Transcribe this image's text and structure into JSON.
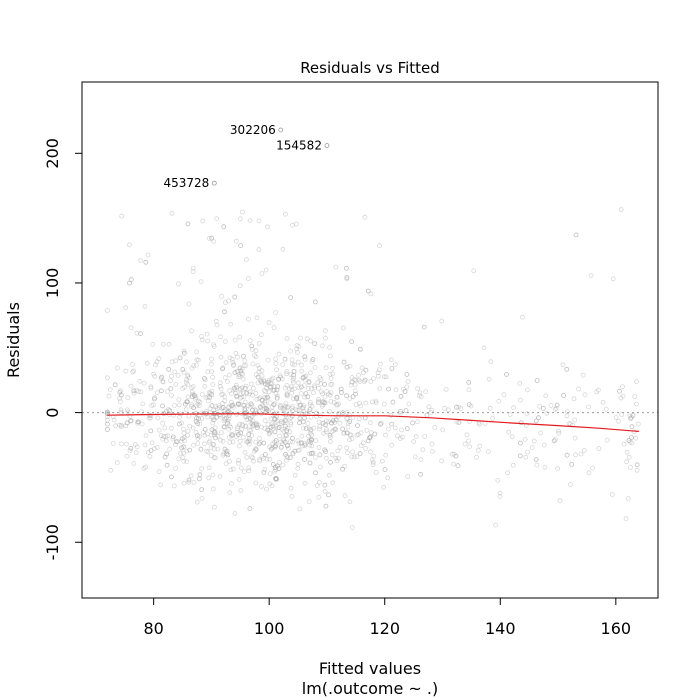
{
  "chart_data": {
    "type": "scatter",
    "title": "Residuals vs Fitted",
    "xlabel": "Fitted values",
    "subtitle": "lm(.outcome ~ .)",
    "ylabel": "Residuals",
    "xlim": [
      67.6,
      167.3
    ],
    "ylim": [
      -143,
      255
    ],
    "xticks": [
      80,
      100,
      120,
      140,
      160
    ],
    "yticks": [
      -100,
      0,
      100,
      200
    ],
    "reference_line": {
      "y": 0,
      "style": "dotted"
    },
    "smoother": {
      "color": "#e41a1c",
      "points": [
        [
          72,
          -2
        ],
        [
          80,
          -1.5
        ],
        [
          90,
          -1
        ],
        [
          98,
          -1
        ],
        [
          105,
          -2
        ],
        [
          112,
          -2.5
        ],
        [
          120,
          -2.5
        ],
        [
          128,
          -4
        ],
        [
          135,
          -6
        ],
        [
          142,
          -8
        ],
        [
          150,
          -10
        ],
        [
          157,
          -12
        ],
        [
          164,
          -14.5
        ]
      ]
    },
    "labeled_points": [
      {
        "label": "302206",
        "x": 102,
        "y": 218
      },
      {
        "label": "154582",
        "x": 110,
        "y": 206
      },
      {
        "label": "453728",
        "x": 90.5,
        "y": 177
      }
    ],
    "point_color": "#a8a8a8",
    "n_points": 1600
  }
}
